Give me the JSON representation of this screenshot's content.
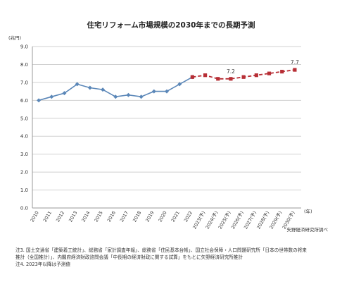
{
  "title": "住宅リフォーム市場規模の2030年までの長期予測",
  "source": "矢野経済研究所調べ",
  "notes": [
    "注3. 国土交通省「建築着工統計」、総務省「家計調査年報」、総務省「住民基本台帳」、国立社会保障・人口問題研究所「日本の世帯数の将来",
    "推計（全国推計）」、内閣府経済財政諮問会議「中長期の経済財政に関する試算」をもとに矢野経済研究所推計",
    "注4. 2023年以降は予測値"
  ],
  "chart_data": {
    "type": "line",
    "title": "住宅リフォーム市場規模の2030年までの長期予測",
    "ylabel": "(兆円)",
    "xlabel": "(年)",
    "ylim": [
      0,
      9
    ],
    "yticks": [
      "0.0",
      "1.0",
      "2.0",
      "3.0",
      "4.0",
      "5.0",
      "6.0",
      "7.0",
      "8.0",
      "9.0"
    ],
    "grid": true,
    "categories": [
      "2010",
      "2011",
      "2012",
      "2013",
      "2014",
      "2015",
      "2016",
      "2017",
      "2018",
      "2019",
      "2020",
      "2021",
      "2022",
      "2023(予)",
      "2024(予)",
      "2025(予)",
      "2026(予)",
      "2027(予)",
      "2028(予)",
      "2029(予)",
      "2030(予)"
    ],
    "series": [
      {
        "name": "",
        "style": "solid",
        "color": "#5b87b8",
        "values": [
          6.0,
          6.2,
          6.4,
          6.9,
          6.7,
          6.6,
          6.2,
          6.3,
          6.2,
          6.5,
          6.5,
          6.9,
          7.3,
          null,
          null,
          null,
          null,
          null,
          null,
          null,
          null
        ]
      },
      {
        "name": "",
        "style": "dashed",
        "color": "#b72e35",
        "values": [
          null,
          null,
          null,
          null,
          null,
          null,
          null,
          null,
          null,
          null,
          null,
          null,
          7.3,
          7.4,
          7.2,
          7.2,
          7.3,
          7.4,
          7.5,
          7.6,
          7.7
        ]
      }
    ],
    "annotations": [
      {
        "category": "2025(予)",
        "value": 7.2,
        "text": "7.2"
      },
      {
        "category": "2030(予)",
        "value": 7.7,
        "text": "7.7"
      }
    ]
  }
}
